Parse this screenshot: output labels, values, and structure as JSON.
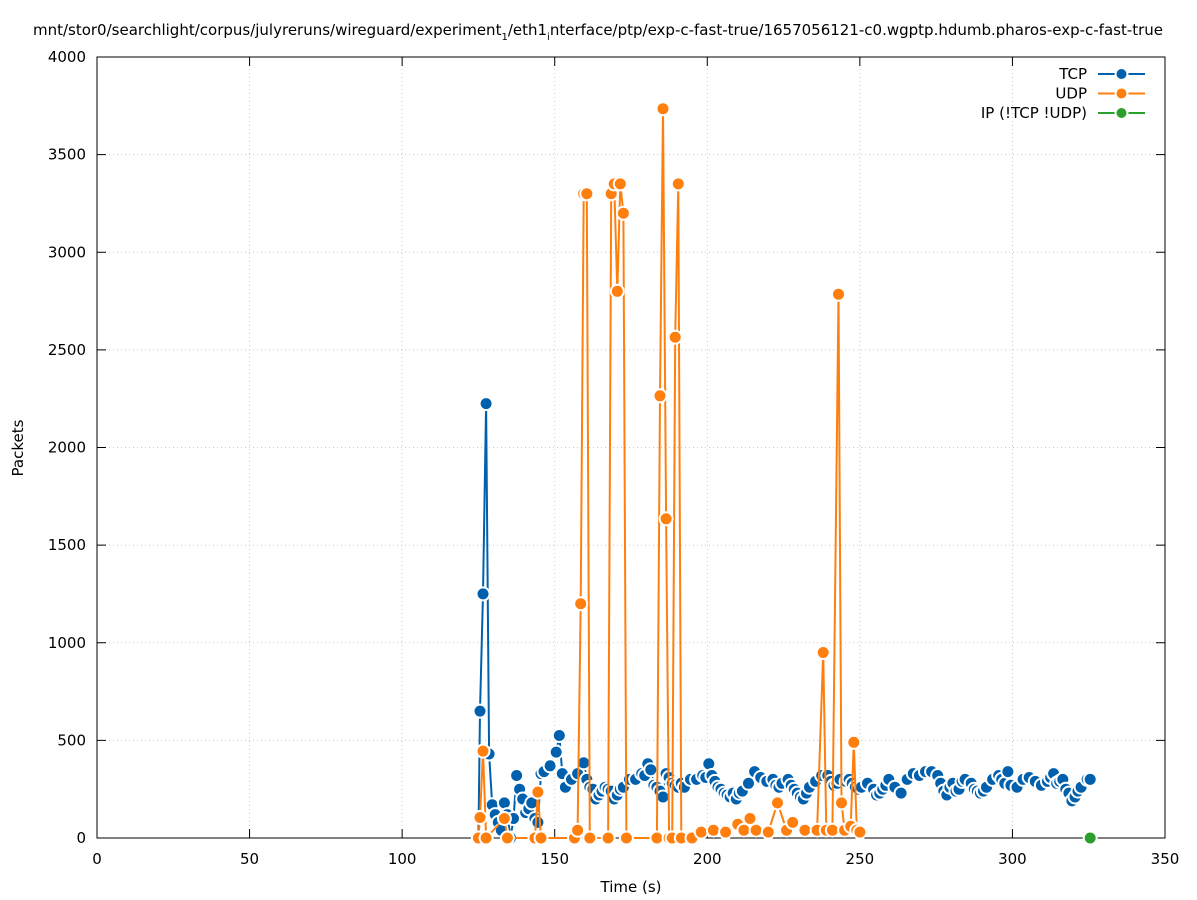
{
  "chart_data": {
    "type": "line",
    "title_parts": {
      "pre1": "mnt/stor0/searchlight/corpus/julyreruns/wireguard/experiment",
      "sub1": "1",
      "pre2": "/eth1",
      "sub2": "i",
      "pre3": "nterface/ptp/exp-c-fast-true/1657056121-c0.wgptp.hdumb.pharos-exp-c-fast-true"
    },
    "xlabel": "Time (s)",
    "ylabel": "Packets",
    "xlim": [
      0,
      350
    ],
    "ylim": [
      0,
      4000
    ],
    "x_ticks": [
      0,
      50,
      100,
      150,
      200,
      250,
      300,
      350
    ],
    "y_ticks": [
      0,
      500,
      1000,
      1500,
      2000,
      2500,
      3000,
      3500,
      4000
    ],
    "grid": true,
    "legend_position": "top-right",
    "series": [
      {
        "name": "TCP",
        "color": "#0060ad",
        "points": [
          [
            125,
            0
          ],
          [
            125.5,
            650
          ],
          [
            126.5,
            1250
          ],
          [
            127.5,
            2225
          ],
          [
            128.5,
            430
          ],
          [
            129.5,
            170
          ],
          [
            130.5,
            120
          ],
          [
            131.5,
            80
          ],
          [
            132.5,
            40
          ],
          [
            133.5,
            180
          ],
          [
            134.5,
            120
          ],
          [
            135.5,
            0
          ],
          [
            136.5,
            100
          ],
          [
            137.5,
            320
          ],
          [
            138.5,
            250
          ],
          [
            139.5,
            200
          ],
          [
            140.5,
            130
          ],
          [
            141.5,
            150
          ],
          [
            142.5,
            180
          ],
          [
            143.5,
            100
          ],
          [
            144.5,
            80
          ],
          [
            145.5,
            330
          ],
          [
            146.5,
            340
          ],
          [
            148.5,
            370
          ],
          [
            150.5,
            440
          ],
          [
            151.5,
            525
          ],
          [
            152.5,
            330
          ],
          [
            153.5,
            260
          ],
          [
            155.5,
            300
          ],
          [
            157.5,
            330
          ],
          [
            159.5,
            385
          ],
          [
            160.5,
            300
          ],
          [
            161.5,
            260
          ],
          [
            162.5,
            250
          ],
          [
            163.5,
            200
          ],
          [
            164.5,
            220
          ],
          [
            165.5,
            240
          ],
          [
            166.5,
            260
          ],
          [
            167.5,
            250
          ],
          [
            168.5,
            240
          ],
          [
            169.5,
            200
          ],
          [
            170.5,
            220
          ],
          [
            171.5,
            250
          ],
          [
            172.5,
            260
          ],
          [
            174.5,
            300
          ],
          [
            176.5,
            300
          ],
          [
            178.5,
            330
          ],
          [
            179.5,
            320
          ],
          [
            180.5,
            380
          ],
          [
            181.5,
            350
          ],
          [
            182.5,
            270
          ],
          [
            183.5,
            260
          ],
          [
            184.5,
            240
          ],
          [
            185.5,
            210
          ],
          [
            186.5,
            330
          ],
          [
            187.5,
            310
          ],
          [
            188.5,
            280
          ],
          [
            189.5,
            270
          ],
          [
            190.5,
            260
          ],
          [
            191.5,
            280
          ],
          [
            192.5,
            260
          ],
          [
            194.5,
            300
          ],
          [
            196.5,
            300
          ],
          [
            198.5,
            320
          ],
          [
            199.5,
            310
          ],
          [
            200.5,
            380
          ],
          [
            201.5,
            320
          ],
          [
            202.5,
            290
          ],
          [
            203.5,
            260
          ],
          [
            204.5,
            250
          ],
          [
            205.5,
            230
          ],
          [
            206.5,
            220
          ],
          [
            207.5,
            210
          ],
          [
            208.5,
            230
          ],
          [
            209.5,
            200
          ],
          [
            210.5,
            230
          ],
          [
            211.5,
            240
          ],
          [
            213.5,
            280
          ],
          [
            215.5,
            340
          ],
          [
            217.5,
            310
          ],
          [
            219.5,
            290
          ],
          [
            221.5,
            300
          ],
          [
            222.5,
            270
          ],
          [
            223.5,
            260
          ],
          [
            224.5,
            280
          ],
          [
            226.5,
            300
          ],
          [
            227.5,
            270
          ],
          [
            228.5,
            250
          ],
          [
            229.5,
            230
          ],
          [
            230.5,
            210
          ],
          [
            231.5,
            200
          ],
          [
            232.5,
            230
          ],
          [
            233.5,
            260
          ],
          [
            235.5,
            290
          ],
          [
            237.5,
            320
          ],
          [
            239.5,
            320
          ],
          [
            240.5,
            290
          ],
          [
            241.5,
            270
          ],
          [
            242.5,
            280
          ],
          [
            243.5,
            300
          ],
          [
            245.5,
            290
          ],
          [
            246.5,
            300
          ],
          [
            247.5,
            280
          ],
          [
            248.5,
            260
          ],
          [
            249.5,
            250
          ],
          [
            250.5,
            260
          ],
          [
            252.5,
            280
          ],
          [
            254.5,
            250
          ],
          [
            255.5,
            220
          ],
          [
            256.5,
            230
          ],
          [
            257.5,
            250
          ],
          [
            258.5,
            270
          ],
          [
            259.5,
            300
          ],
          [
            261.5,
            260
          ],
          [
            263.5,
            230
          ],
          [
            265.5,
            300
          ],
          [
            267.5,
            330
          ],
          [
            269.5,
            320
          ],
          [
            271.5,
            340
          ],
          [
            273.5,
            340
          ],
          [
            275.5,
            320
          ],
          [
            276.5,
            280
          ],
          [
            277.5,
            240
          ],
          [
            278.5,
            220
          ],
          [
            279.5,
            260
          ],
          [
            280.5,
            280
          ],
          [
            281.5,
            240
          ],
          [
            282.5,
            250
          ],
          [
            283.5,
            290
          ],
          [
            284.5,
            300
          ],
          [
            286.5,
            280
          ],
          [
            287.5,
            250
          ],
          [
            288.5,
            240
          ],
          [
            289.5,
            230
          ],
          [
            290.5,
            240
          ],
          [
            291.5,
            260
          ],
          [
            293.5,
            300
          ],
          [
            295.5,
            320
          ],
          [
            296.5,
            300
          ],
          [
            297.5,
            280
          ],
          [
            298.5,
            340
          ],
          [
            299.5,
            270
          ],
          [
            301.5,
            260
          ],
          [
            303.5,
            300
          ],
          [
            305.5,
            310
          ],
          [
            307.5,
            290
          ],
          [
            309.5,
            270
          ],
          [
            311.5,
            290
          ],
          [
            312.5,
            310
          ],
          [
            313.5,
            330
          ],
          [
            314.5,
            280
          ],
          [
            315.5,
            290
          ],
          [
            316.5,
            300
          ],
          [
            317.5,
            250
          ],
          [
            318.5,
            230
          ],
          [
            319.5,
            190
          ],
          [
            320.5,
            210
          ],
          [
            321.5,
            240
          ],
          [
            322.5,
            260
          ],
          [
            324.5,
            300
          ],
          [
            325.5,
            300
          ]
        ]
      },
      {
        "name": "UDP",
        "color": "#ff7f0e",
        "points": [
          [
            125,
            0
          ],
          [
            125.5,
            105
          ],
          [
            126.5,
            445
          ],
          [
            127.5,
            0
          ],
          [
            133.5,
            100
          ],
          [
            134.5,
            0
          ],
          [
            143.5,
            0
          ],
          [
            144.5,
            235
          ],
          [
            145.5,
            0
          ],
          [
            156.5,
            0
          ],
          [
            157.5,
            40
          ],
          [
            158.5,
            1200
          ],
          [
            159.5,
            3300
          ],
          [
            160.5,
            3300
          ],
          [
            161.5,
            0
          ],
          [
            167.5,
            0
          ],
          [
            168.5,
            3300
          ],
          [
            169.5,
            3350
          ],
          [
            170.5,
            2800
          ],
          [
            171.5,
            3350
          ],
          [
            172.5,
            3200
          ],
          [
            173.5,
            0
          ],
          [
            183.5,
            0
          ],
          [
            184.5,
            2265
          ],
          [
            185.5,
            3735
          ],
          [
            186.5,
            1635
          ],
          [
            187.5,
            0
          ],
          [
            188.5,
            0
          ],
          [
            189.5,
            2565
          ],
          [
            190.5,
            3350
          ],
          [
            191.5,
            0
          ],
          [
            195,
            0
          ],
          [
            198,
            30
          ],
          [
            202,
            40
          ],
          [
            206,
            30
          ],
          [
            210,
            70
          ],
          [
            212,
            40
          ],
          [
            214,
            100
          ],
          [
            216,
            40
          ],
          [
            220,
            30
          ],
          [
            223,
            180
          ],
          [
            226,
            40
          ],
          [
            228,
            80
          ],
          [
            232,
            40
          ],
          [
            236,
            40
          ],
          [
            238,
            950
          ],
          [
            239,
            40
          ],
          [
            241,
            40
          ],
          [
            243,
            2785
          ],
          [
            244,
            180
          ],
          [
            245,
            40
          ],
          [
            247,
            60
          ],
          [
            248,
            490
          ],
          [
            249,
            40
          ],
          [
            250,
            30
          ]
        ]
      },
      {
        "name": "IP (!TCP  !UDP)",
        "color": "#2ca02c",
        "points": [
          [
            325.5,
            0
          ]
        ]
      }
    ]
  }
}
